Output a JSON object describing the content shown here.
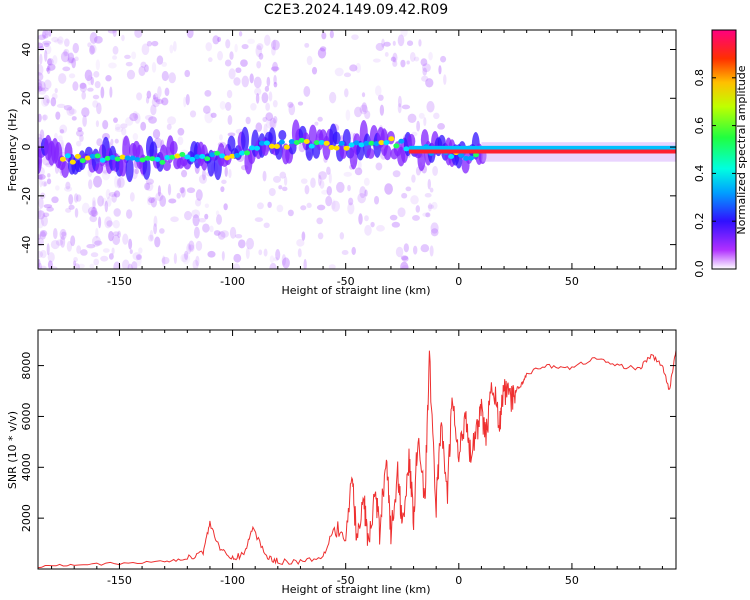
{
  "title": "C2E3.2024.149.09.42.R09",
  "chart_data": [
    {
      "type": "heatmap",
      "name": "spectrogram",
      "xlabel": "Height of straight line (km)",
      "ylabel": "Frequency (Hz)",
      "xlim": [
        -186,
        96
      ],
      "ylim": [
        -50,
        48
      ],
      "xticks": [
        -150,
        -100,
        -50,
        0,
        50
      ],
      "xtick_labels": [
        "-150",
        "-100",
        "-50",
        "0",
        "50"
      ],
      "yticks": [
        -40,
        -20,
        0,
        20,
        40
      ],
      "ytick_labels": [
        "-40",
        "-20",
        "0",
        "20",
        "40"
      ],
      "ridge": {
        "x": [
          -186,
          -170,
          -150,
          -130,
          -115,
          -100,
          -90,
          -80,
          -70,
          -60,
          -50,
          -40,
          -30,
          -20,
          -10,
          0,
          5,
          10,
          30,
          60,
          80,
          96
        ],
        "y": [
          -3,
          -5,
          -5,
          -5,
          -4,
          -3,
          0,
          1,
          2,
          1,
          0,
          1,
          2,
          0,
          -2,
          -3,
          -5,
          -2,
          -2,
          -2,
          -2,
          -3
        ]
      },
      "colorbar": {
        "label": "Normalized spectral amplitude",
        "range": [
          0,
          1
        ],
        "ticks": [
          0.0,
          0.2,
          0.4,
          0.6,
          0.8
        ],
        "tick_labels": [
          "0.0",
          "0.2",
          "0.4",
          "0.6",
          "0.8"
        ]
      }
    },
    {
      "type": "line",
      "name": "snr",
      "xlabel": "Height of straight line (km)",
      "ylabel": "SNR (10 * v/v)",
      "xlim": [
        -186,
        96
      ],
      "ylim": [
        0,
        9400
      ],
      "xticks": [
        -150,
        -100,
        -50,
        0,
        50
      ],
      "xtick_labels": [
        "-150",
        "-100",
        "-50",
        "0",
        "50"
      ],
      "yticks": [
        2000,
        4000,
        6000,
        8000
      ],
      "ytick_labels": [
        "2000",
        "4000",
        "6000",
        "8000"
      ],
      "color": "#ee3030",
      "series": [
        {
          "name": "SNR",
          "x": [
            -186,
            -170,
            -150,
            -130,
            -120,
            -113,
            -110,
            -105,
            -100,
            -95,
            -91,
            -85,
            -80,
            -70,
            -60,
            -55,
            -50,
            -47,
            -45,
            -42,
            -40,
            -37,
            -35,
            -32,
            -30,
            -27,
            -25,
            -22,
            -20,
            -18,
            -15,
            -13,
            -10,
            -8,
            -5,
            -3,
            0,
            3,
            5,
            8,
            10,
            12,
            15,
            18,
            20,
            23,
            25,
            28,
            30,
            40,
            50,
            60,
            70,
            80,
            85,
            90,
            93,
            96
          ],
          "y": [
            100,
            200,
            200,
            300,
            400,
            700,
            1800,
            700,
            400,
            600,
            1600,
            500,
            300,
            300,
            500,
            1700,
            1200,
            3500,
            1000,
            2800,
            900,
            3000,
            1500,
            4600,
            1300,
            3800,
            1800,
            4300,
            2000,
            5400,
            2700,
            8200,
            2500,
            5600,
            3000,
            6700,
            4300,
            6200,
            4600,
            5500,
            6200,
            5200,
            7400,
            5600,
            7100,
            6600,
            7000,
            7300,
            7700,
            8000,
            7900,
            8300,
            8000,
            7900,
            8400,
            8000,
            7000,
            8600
          ]
        }
      ]
    }
  ]
}
